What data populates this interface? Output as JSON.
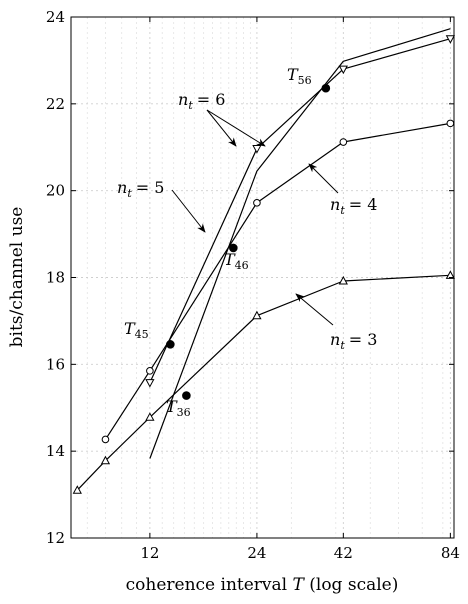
{
  "chart_data": {
    "type": "line",
    "xlabel": "coherence interval",
    "xlabel_var": "T",
    "xlabel_suffix": "(log scale)",
    "ylabel": "bits/channel use",
    "xscale": "log",
    "xlim": [
      7.2,
      86
    ],
    "ylim": [
      12,
      24
    ],
    "xticks": [
      12,
      24,
      42,
      84
    ],
    "xtick_labels": [
      "12",
      "24",
      "42",
      "84"
    ],
    "yticks": [
      12,
      14,
      16,
      18,
      20,
      22,
      24
    ],
    "ytick_labels": [
      "12",
      "14",
      "16",
      "18",
      "20",
      "22",
      "24"
    ],
    "grid": true,
    "minor_x_grid": [
      8,
      9,
      10,
      11,
      13,
      14,
      15,
      16,
      17,
      18,
      19,
      20,
      21,
      22,
      23,
      30,
      40,
      50,
      60,
      70,
      80
    ],
    "series": [
      {
        "name": "n_t = 3",
        "marker": "triangle-up",
        "x": [
          7.5,
          9,
          12,
          24,
          42,
          84
        ],
        "y": [
          13.1,
          13.78,
          14.78,
          17.12,
          17.92,
          18.05
        ]
      },
      {
        "name": "n_t = 4",
        "marker": "circle",
        "x": [
          9,
          12,
          24,
          42,
          84
        ],
        "y": [
          14.27,
          15.85,
          19.72,
          21.12,
          21.55
        ]
      },
      {
        "name": "n_t = 5",
        "marker": "triangle-down",
        "x": [
          12,
          24,
          42,
          84
        ],
        "y": [
          15.58,
          20.97,
          22.8,
          23.5
        ]
      },
      {
        "name": "n_t = 6",
        "marker": "none",
        "x": [
          12,
          24,
          42,
          84
        ],
        "y": [
          13.83,
          20.45,
          22.98,
          23.73
        ]
      }
    ],
    "intersections": [
      {
        "label": "T",
        "sub": "45",
        "x": 13.7,
        "y": 16.46
      },
      {
        "label": "T",
        "sub": "36",
        "x": 15.2,
        "y": 15.28
      },
      {
        "label": "T",
        "sub": "46",
        "x": 20.6,
        "y": 18.68
      },
      {
        "label": "T",
        "sub": "56",
        "x": 37.5,
        "y": 22.36
      }
    ],
    "annotations": [
      {
        "var": "n",
        "sub": "t",
        "eq": "= 6"
      },
      {
        "var": "n",
        "sub": "t",
        "eq": "= 5"
      },
      {
        "var": "n",
        "sub": "t",
        "eq": "= 4"
      },
      {
        "var": "n",
        "sub": "t",
        "eq": "= 3"
      }
    ]
  }
}
